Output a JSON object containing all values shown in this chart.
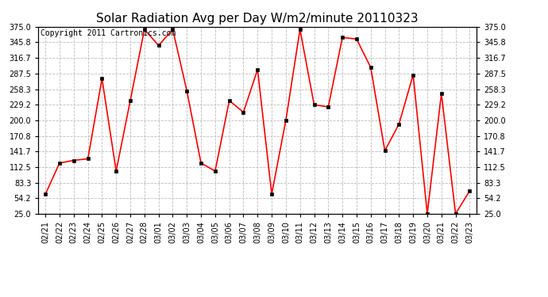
{
  "title": "Solar Radiation Avg per Day W/m2/minute 20110323",
  "copyright": "Copyright 2011 Cartronics.com",
  "dates": [
    "02/21",
    "02/22",
    "02/23",
    "02/24",
    "02/25",
    "02/26",
    "02/27",
    "02/28",
    "03/01",
    "03/02",
    "03/03",
    "03/04",
    "03/05",
    "03/06",
    "03/07",
    "03/08",
    "03/09",
    "03/10",
    "03/11",
    "03/12",
    "03/13",
    "03/14",
    "03/15",
    "03/16",
    "03/17",
    "03/18",
    "03/19",
    "03/20",
    "03/21",
    "03/22",
    "03/23"
  ],
  "values": [
    62,
    120,
    125,
    128,
    278,
    105,
    237,
    370,
    340,
    370,
    255,
    120,
    105,
    237,
    215,
    295,
    62,
    200,
    370,
    229,
    225,
    355,
    352,
    299,
    143,
    193,
    285,
    25,
    250,
    25,
    68
  ],
  "ylim": [
    25.0,
    375.0
  ],
  "yticks": [
    25.0,
    54.2,
    83.3,
    112.5,
    141.7,
    170.8,
    200.0,
    229.2,
    258.3,
    287.5,
    316.7,
    345.8,
    375.0
  ],
  "line_color": "#ff0000",
  "marker_color": "#000000",
  "bg_color": "#ffffff",
  "grid_color": "#bbbbbb",
  "title_fontsize": 11,
  "copyright_fontsize": 7,
  "tick_fontsize": 7
}
